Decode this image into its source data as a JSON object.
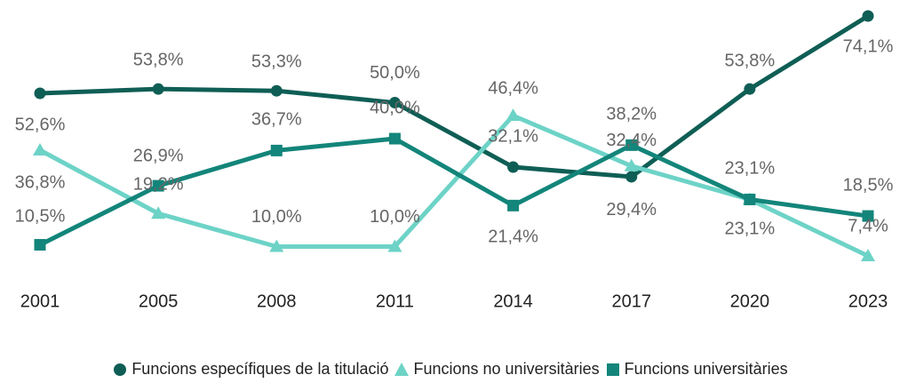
{
  "chart_data": {
    "type": "line",
    "categories": [
      "2001",
      "2005",
      "2008",
      "2011",
      "2014",
      "2017",
      "2020",
      "2023"
    ],
    "series": [
      {
        "name": "Funcions específiques de la titulació",
        "color": "#0f5e55",
        "marker": "circle",
        "values": [
          52.6,
          53.8,
          53.3,
          50.0,
          32.1,
          29.4,
          53.8,
          74.1
        ],
        "value_labels": [
          "52,6%",
          "53,8%",
          "53,3%",
          "50,0%",
          "32,1%",
          "29,4%",
          "53,8%",
          "74,1%"
        ]
      },
      {
        "name": "Funcions no universitàries",
        "color": "#6dd3c7",
        "marker": "triangle",
        "values": [
          36.8,
          19.2,
          10.0,
          10.0,
          46.4,
          32.4,
          23.1,
          7.4
        ],
        "value_labels": [
          "36,8%",
          "19,2%",
          "10,0%",
          "10,0%",
          "46,4%",
          "32,4%",
          "23,1%",
          "7,4%"
        ]
      },
      {
        "name": "Funcions universitàries",
        "color": "#13857a",
        "marker": "square",
        "values": [
          10.5,
          26.9,
          36.7,
          40.0,
          21.4,
          38.2,
          23.1,
          18.5
        ],
        "value_labels": [
          "10,5%",
          "26,9%",
          "36,7%",
          "40,0%",
          "21,4%",
          "38,2%",
          "23,1%",
          "18,5%"
        ]
      }
    ],
    "legend": "bottom"
  }
}
